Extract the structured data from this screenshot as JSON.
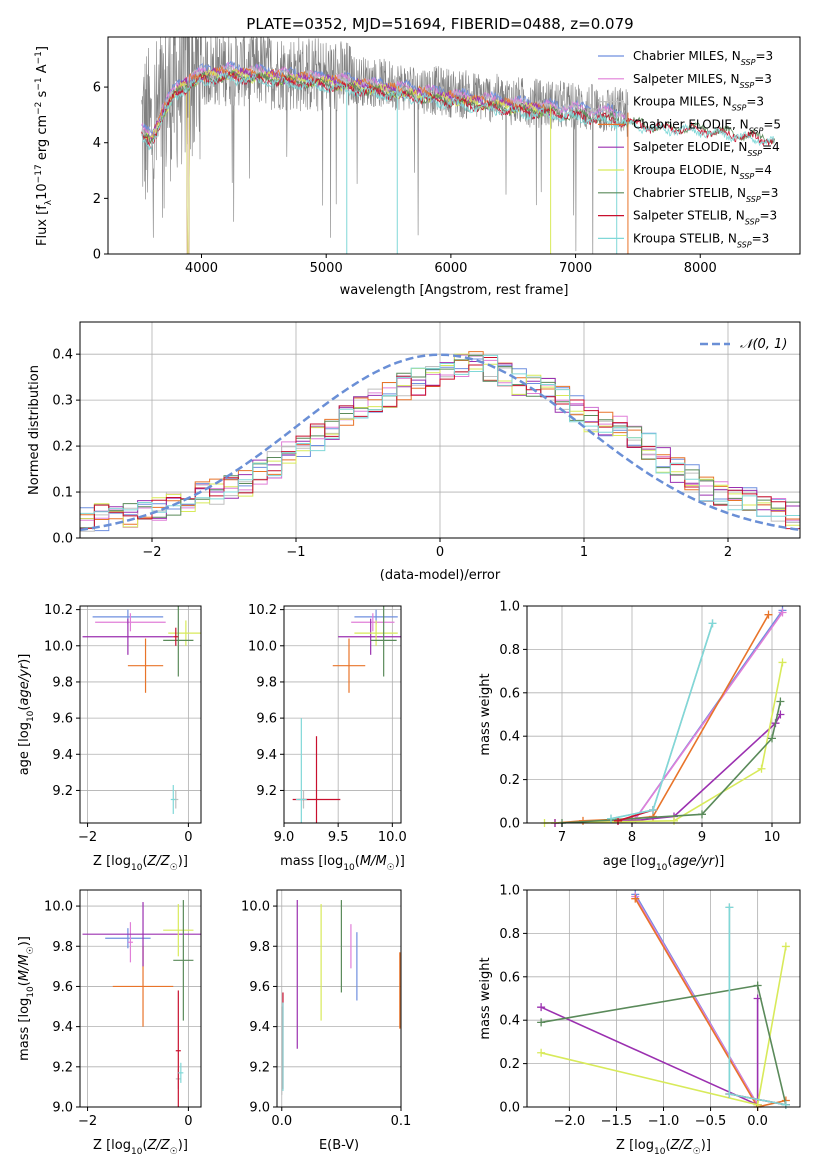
{
  "figure_title": "PLATE=0352, MJD=51694, FIBERID=0488, z=0.079",
  "colors": {
    "chabrier_miles": "#6f8fdf",
    "salpeter_miles": "#e07fd8",
    "kroupa_miles": "#bfbfbf",
    "chabrier_elodie": "#e8742a",
    "salpeter_elodie": "#9b30b0",
    "kroupa_elodie": "#d8ea5a",
    "chabrier_stelib": "#5a8a5a",
    "salpeter_stelib": "#c8102e",
    "kroupa_stelib": "#80d8d8",
    "data": "#808080",
    "normal": "#6a8fd6"
  },
  "chart_data": [
    {
      "id": "spectrum",
      "type": "line",
      "xlabel": "wavelength [Angstrom, rest frame]",
      "ylabel": "Flux [f_λ10^-17 erg cm^-2 s^-1 A^-1]",
      "xlim": [
        3250,
        8800
      ],
      "ylim": [
        0,
        7.8
      ],
      "xticks": [
        4000,
        5000,
        6000,
        7000,
        8000
      ],
      "yticks": [
        0,
        2,
        4,
        6
      ],
      "grid": false,
      "legend": "top-right",
      "legend_labels": [
        {
          "base": "Chabrier MILES, N",
          "sub": "SSP",
          "tail": "=3"
        },
        {
          "base": "Salpeter MILES, N",
          "sub": "SSP",
          "tail": "=3"
        },
        {
          "base": "Kroupa MILES, N",
          "sub": "SSP",
          "tail": "=3"
        },
        {
          "base": "Chabrier ELODIE, N",
          "sub": "SSP",
          "tail": "=5"
        },
        {
          "base": "Salpeter ELODIE, N",
          "sub": "SSP",
          "tail": "=4"
        },
        {
          "base": "Kroupa ELODIE, N",
          "sub": "SSP",
          "tail": "=4"
        },
        {
          "base": "Chabrier STELIB, N",
          "sub": "SSP",
          "tail": "=3"
        },
        {
          "base": "Salpeter STELIB, N",
          "sub": "SSP",
          "tail": "=3"
        },
        {
          "base": "Kroupa STELIB, N",
          "sub": "SSP",
          "tail": "=3"
        }
      ],
      "continuum": {
        "x": [
          3500,
          3600,
          3700,
          3800,
          3900,
          4000,
          4200,
          4500,
          5000,
          5500,
          6000,
          6500,
          7000,
          7400,
          7600,
          8000,
          8500,
          8800
        ],
        "y": [
          4.6,
          4.3,
          5.4,
          6.1,
          6.4,
          6.6,
          6.7,
          6.6,
          6.4,
          6.1,
          5.8,
          5.5,
          5.3,
          5.1,
          4.9,
          4.8,
          4.5,
          4.2
        ]
      },
      "data_range": [
        3520,
        7420
      ],
      "model_ranges": {
        "miles": [
          3520,
          7400
        ],
        "elodie": [
          3550,
          6800
        ],
        "stelib": [
          3520,
          8600
        ]
      }
    },
    {
      "id": "residuals",
      "type": "line",
      "xlabel": "(data-model)/error",
      "ylabel": "Normed distribution",
      "xlim": [
        -2.5,
        2.5
      ],
      "ylim": [
        0,
        0.47
      ],
      "xticks": [
        -2,
        -1,
        0,
        1,
        2
      ],
      "yticks": [
        0.0,
        0.1,
        0.2,
        0.3,
        0.4
      ],
      "grid": true,
      "legend": "top-right",
      "legend_label": "N(0,1)",
      "bin_width": 0.1,
      "bins_start": -2.5,
      "base_bins": [
        0.04,
        0.045,
        0.05,
        0.05,
        0.055,
        0.06,
        0.07,
        0.085,
        0.095,
        0.1,
        0.11,
        0.12,
        0.14,
        0.16,
        0.18,
        0.2,
        0.22,
        0.24,
        0.27,
        0.29,
        0.3,
        0.31,
        0.33,
        0.34,
        0.35,
        0.37,
        0.38,
        0.38,
        0.37,
        0.36,
        0.34,
        0.33,
        0.32,
        0.3,
        0.28,
        0.26,
        0.25,
        0.24,
        0.22,
        0.2,
        0.17,
        0.15,
        0.13,
        0.11,
        0.1,
        0.09,
        0.08,
        0.07,
        0.06,
        0.05
      ]
    },
    {
      "id": "age_vs_Z",
      "type": "scatter",
      "xlabel": "Z [log10(Z/Z☉)]",
      "ylabel": "age [log10(age/yr)]",
      "xlim": [
        -2.15,
        0.25
      ],
      "ylim": [
        9.02,
        10.22
      ],
      "xticks": [
        -2,
        0
      ],
      "yticks": [
        9.2,
        9.4,
        9.6,
        9.8,
        10.0,
        10.2
      ],
      "grid": true,
      "points": [
        {
          "model": "chabrier_miles",
          "x": -1.2,
          "y": 10.16,
          "xerr": 0.7,
          "yerr": 0.04
        },
        {
          "model": "salpeter_miles",
          "x": -1.15,
          "y": 10.13,
          "xerr": 0.7,
          "yerr": 0.05
        },
        {
          "model": "kroupa_miles",
          "x": -0.25,
          "y": 9.15,
          "xerr": 0.05,
          "yerr": 0.05
        },
        {
          "model": "chabrier_elodie",
          "x": -0.85,
          "y": 9.89,
          "xerr": 0.35,
          "yerr": 0.15
        },
        {
          "model": "salpeter_elodie",
          "x": -1.2,
          "y": 10.05,
          "xerr": 0.9,
          "yerr": 0.1
        },
        {
          "model": "kroupa_elodie",
          "x": -0.05,
          "y": 10.07,
          "xerr": 0.35,
          "yerr": 0.07
        },
        {
          "model": "chabrier_stelib",
          "x": -0.2,
          "y": 10.03,
          "xerr": 0.3,
          "yerr": 0.2
        },
        {
          "model": "salpeter_stelib",
          "x": -0.25,
          "y": 10.05,
          "xerr": 0.05,
          "yerr": 0.05
        },
        {
          "model": "kroupa_stelib",
          "x": -0.3,
          "y": 9.15,
          "xerr": 0.05,
          "yerr": 0.08
        }
      ]
    },
    {
      "id": "age_vs_mass",
      "type": "scatter",
      "xlabel": "mass [log10(M/M☉)]",
      "ylabel": "",
      "xlim": [
        9.0,
        10.08
      ],
      "ylim": [
        9.02,
        10.22
      ],
      "xticks": [
        9.0,
        9.5,
        10.0
      ],
      "yticks": [
        9.2,
        9.4,
        9.6,
        9.8,
        10.0,
        10.2
      ],
      "grid": true,
      "points": [
        {
          "model": "chabrier_miles",
          "x": 9.85,
          "y": 10.16,
          "xerr": 0.2,
          "yerr": 0.04
        },
        {
          "model": "salpeter_miles",
          "x": 9.82,
          "y": 10.13,
          "xerr": 0.2,
          "yerr": 0.05
        },
        {
          "model": "kroupa_miles",
          "x": 9.18,
          "y": 9.15,
          "xerr": 0.05,
          "yerr": 0.05
        },
        {
          "model": "chabrier_elodie",
          "x": 9.6,
          "y": 9.89,
          "xerr": 0.15,
          "yerr": 0.15
        },
        {
          "model": "salpeter_elodie",
          "x": 9.8,
          "y": 10.05,
          "xerr": 0.3,
          "yerr": 0.1
        },
        {
          "model": "kroupa_elodie",
          "x": 9.85,
          "y": 10.07,
          "xerr": 0.2,
          "yerr": 0.07
        },
        {
          "model": "chabrier_stelib",
          "x": 9.92,
          "y": 10.03,
          "xerr": 0.12,
          "yerr": 0.2
        },
        {
          "model": "salpeter_stelib",
          "x": 9.3,
          "y": 9.15,
          "xerr": 0.22,
          "yerr": 0.35
        },
        {
          "model": "kroupa_stelib",
          "x": 9.16,
          "y": 9.15,
          "xerr": 0.05,
          "yerr": 0.45
        }
      ]
    },
    {
      "id": "weight_vs_age",
      "type": "line",
      "xlabel": "age [log10(age/yr)]",
      "ylabel": "mass weight",
      "xlim": [
        6.5,
        10.4
      ],
      "ylim": [
        0,
        1.0
      ],
      "xticks": [
        7,
        8,
        9,
        10
      ],
      "yticks": [
        0.0,
        0.2,
        0.4,
        0.6,
        0.8,
        1.0
      ],
      "grid": true,
      "series": [
        {
          "model": "chabrier_miles",
          "x": [
            7.8,
            8.05,
            10.15
          ],
          "y": [
            0.01,
            0.02,
            0.98
          ]
        },
        {
          "model": "salpeter_miles",
          "x": [
            7.8,
            8.05,
            10.15
          ],
          "y": [
            0.01,
            0.02,
            0.97
          ]
        },
        {
          "model": "kroupa_miles",
          "x": [
            7.7,
            8.3,
            9.15
          ],
          "y": [
            0.02,
            0.06,
            0.92
          ]
        },
        {
          "model": "chabrier_elodie",
          "x": [
            6.9,
            7.3,
            8.0,
            8.3,
            9.95
          ],
          "y": [
            0.0,
            0.01,
            0.02,
            0.03,
            0.96
          ]
        },
        {
          "model": "salpeter_elodie",
          "x": [
            6.9,
            8.0,
            8.6,
            10.05,
            10.12
          ],
          "y": [
            0.0,
            0.01,
            0.03,
            0.46,
            0.5
          ]
        },
        {
          "model": "kroupa_elodie",
          "x": [
            6.75,
            8.6,
            9.85,
            10.15
          ],
          "y": [
            0.0,
            0.01,
            0.25,
            0.74
          ]
        },
        {
          "model": "chabrier_stelib",
          "x": [
            7.0,
            9.0,
            10.0,
            10.12
          ],
          "y": [
            0.0,
            0.04,
            0.39,
            0.56
          ]
        },
        {
          "model": "salpeter_stelib",
          "x": [
            7.8,
            8.3
          ],
          "y": [
            0.01,
            0.06
          ]
        },
        {
          "model": "kroupa_stelib",
          "x": [
            7.7,
            8.3,
            9.15
          ],
          "y": [
            0.02,
            0.06,
            0.92
          ]
        }
      ]
    },
    {
      "id": "mass_vs_Z",
      "type": "scatter",
      "xlabel": "Z [log10(Z/Z☉)]",
      "ylabel": "mass [log10(M/M☉)]",
      "xlim": [
        -2.15,
        0.25
      ],
      "ylim": [
        9.0,
        10.08
      ],
      "xticks": [
        -2,
        0
      ],
      "yticks": [
        9.0,
        9.2,
        9.4,
        9.6,
        9.8,
        10.0
      ],
      "grid": true,
      "points": [
        {
          "model": "chabrier_miles",
          "x": -1.2,
          "y": 9.84,
          "xerr": 0.45,
          "yerr": 0.05
        },
        {
          "model": "salpeter_miles",
          "x": -1.15,
          "y": 9.82,
          "xerr": 0.05,
          "yerr": 0.1
        },
        {
          "model": "kroupa_miles",
          "x": -0.2,
          "y": 9.14,
          "xerr": 0.05,
          "yerr": 0.05
        },
        {
          "model": "chabrier_elodie",
          "x": -0.9,
          "y": 9.6,
          "xerr": 0.6,
          "yerr": 0.2
        },
        {
          "model": "salpeter_elodie",
          "x": -0.9,
          "y": 9.86,
          "xerr": 1.2,
          "yerr": 0.16
        },
        {
          "model": "kroupa_elodie",
          "x": -0.2,
          "y": 9.88,
          "xerr": 0.3,
          "yerr": 0.13
        },
        {
          "model": "chabrier_stelib",
          "x": -0.1,
          "y": 9.73,
          "xerr": 0.2,
          "yerr": 0.3
        },
        {
          "model": "salpeter_stelib",
          "x": -0.2,
          "y": 9.28,
          "xerr": 0.05,
          "yerr": 0.3
        },
        {
          "model": "kroupa_stelib",
          "x": -0.15,
          "y": 9.17,
          "xerr": 0.05,
          "yerr": 0.05
        }
      ]
    },
    {
      "id": "mass_vs_ebv",
      "type": "scatter",
      "xlabel": "E(B-V)",
      "ylabel": "",
      "xlim": [
        -0.004,
        0.1
      ],
      "ylim": [
        9.0,
        10.08
      ],
      "xticks": [
        0.0,
        0.1
      ],
      "yticks": [
        9.0,
        9.2,
        9.4,
        9.6,
        9.8,
        10.0
      ],
      "grid": true,
      "points": [
        {
          "model": "chabrier_miles",
          "x": 0.063,
          "y": 9.7,
          "xerr": 0.0,
          "yerr": 0.17
        },
        {
          "model": "salpeter_miles",
          "x": 0.058,
          "y": 9.8,
          "xerr": 0.0,
          "yerr": 0.11
        },
        {
          "model": "kroupa_miles",
          "x": 0.0,
          "y": 9.28,
          "xerr": 0.0,
          "yerr": 0.22
        },
        {
          "model": "chabrier_elodie",
          "x": 0.099,
          "y": 9.58,
          "xerr": 0.0,
          "yerr": 0.19
        },
        {
          "model": "salpeter_elodie",
          "x": 0.013,
          "y": 9.66,
          "xerr": 0.0,
          "yerr": 0.37
        },
        {
          "model": "kroupa_elodie",
          "x": 0.033,
          "y": 9.72,
          "xerr": 0.0,
          "yerr": 0.29
        },
        {
          "model": "chabrier_stelib",
          "x": 0.05,
          "y": 9.8,
          "xerr": 0.0,
          "yerr": 0.23
        },
        {
          "model": "salpeter_stelib",
          "x": 0.001,
          "y": 9.33,
          "xerr": 0.0,
          "yerr": 0.24
        },
        {
          "model": "kroupa_stelib",
          "x": 0.001,
          "y": 9.3,
          "xerr": 0.0,
          "yerr": 0.22
        }
      ]
    },
    {
      "id": "weight_vs_Z",
      "type": "line",
      "xlabel": "Z [log10(Z/Z☉)]",
      "ylabel": "mass weight",
      "xlim": [
        -2.45,
        0.45
      ],
      "ylim": [
        0,
        1.0
      ],
      "xticks": [
        -2.0,
        -1.5,
        -1.0,
        -0.5,
        0.0
      ],
      "yticks": [
        0.0,
        0.2,
        0.4,
        0.6,
        0.8,
        1.0
      ],
      "grid": true,
      "series": [
        {
          "model": "chabrier_miles",
          "x": [
            -1.3,
            0.0
          ],
          "y": [
            0.98,
            0.01
          ]
        },
        {
          "model": "salpeter_miles",
          "x": [
            -1.3,
            0.0
          ],
          "y": [
            0.97,
            0.01
          ]
        },
        {
          "model": "kroupa_miles",
          "x": [
            -0.3,
            -0.3,
            0.3
          ],
          "y": [
            0.92,
            0.06,
            0.01
          ]
        },
        {
          "model": "chabrier_elodie",
          "x": [
            -1.3,
            0.0,
            0.3
          ],
          "y": [
            0.96,
            0.0,
            0.03
          ]
        },
        {
          "model": "salpeter_elodie",
          "x": [
            -2.3,
            0.0,
            0.0
          ],
          "y": [
            0.46,
            0.01,
            0.5
          ]
        },
        {
          "model": "kroupa_elodie",
          "x": [
            -2.3,
            0.0,
            0.3
          ],
          "y": [
            0.25,
            0.01,
            0.74
          ]
        },
        {
          "model": "chabrier_stelib",
          "x": [
            -2.3,
            0.0,
            0.3
          ],
          "y": [
            0.39,
            0.56,
            0.01
          ]
        },
        {
          "model": "salpeter_stelib",
          "x": [
            -0.3,
            0.3
          ],
          "y": [
            0.06,
            0.01
          ]
        },
        {
          "model": "kroupa_stelib",
          "x": [
            -0.3,
            -0.3,
            0.3
          ],
          "y": [
            0.92,
            0.06,
            0.01
          ]
        }
      ]
    }
  ]
}
